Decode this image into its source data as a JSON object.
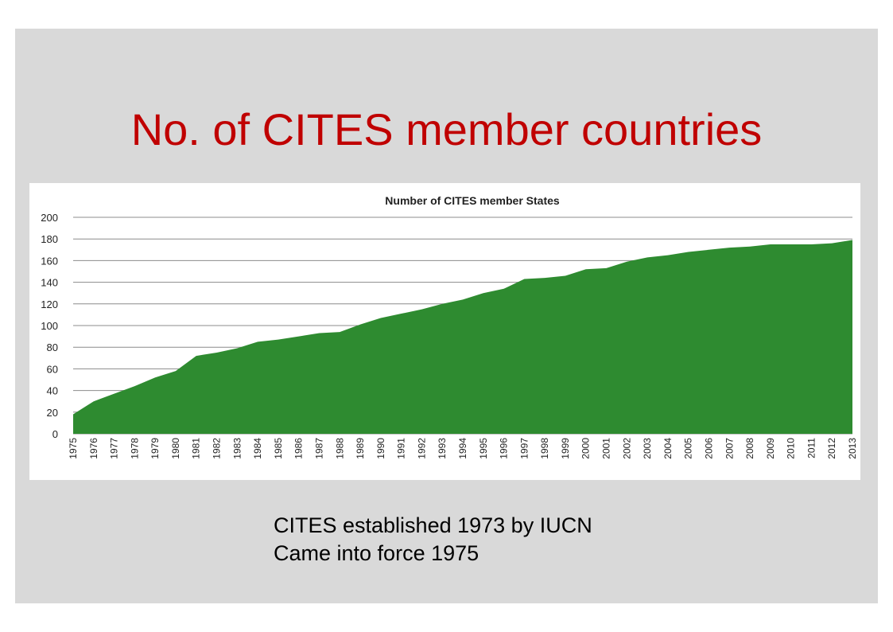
{
  "slide": {
    "title": "No. of CITES member countries",
    "captions": [
      "CITES established 1973 by IUCN",
      "Came into force 1975"
    ]
  },
  "colors": {
    "slide_background": "#d9d9d9",
    "title": "#c00000",
    "area_fill": "#2e8b30",
    "gridline": "#8c8c8c"
  },
  "chart_data": {
    "type": "area",
    "title": "Number of CITES member States",
    "xlabel": "",
    "ylabel": "",
    "ylim": [
      0,
      200
    ],
    "yticks": [
      0,
      20,
      40,
      60,
      80,
      100,
      120,
      140,
      160,
      180,
      200
    ],
    "grid": true,
    "legend": "none",
    "x": [
      "1975",
      "1976",
      "1977",
      "1978",
      "1979",
      "1980",
      "1981",
      "1982",
      "1983",
      "1984",
      "1985",
      "1986",
      "1987",
      "1988",
      "1989",
      "1990",
      "1991",
      "1992",
      "1993",
      "1994",
      "1995",
      "1996",
      "1997",
      "1998",
      "1999",
      "2000",
      "2001",
      "2002",
      "2003",
      "2004",
      "2005",
      "2006",
      "2007",
      "2008",
      "2009",
      "2010",
      "2011",
      "2012",
      "2013"
    ],
    "series": [
      {
        "values": [
          18,
          30,
          37,
          44,
          52,
          58,
          72,
          75,
          79,
          85,
          87,
          90,
          93,
          94,
          101,
          107,
          111,
          115,
          120,
          124,
          130,
          134,
          143,
          144,
          146,
          152,
          153,
          159,
          163,
          165,
          168,
          170,
          172,
          173,
          175,
          175,
          175,
          176,
          179
        ]
      }
    ]
  }
}
